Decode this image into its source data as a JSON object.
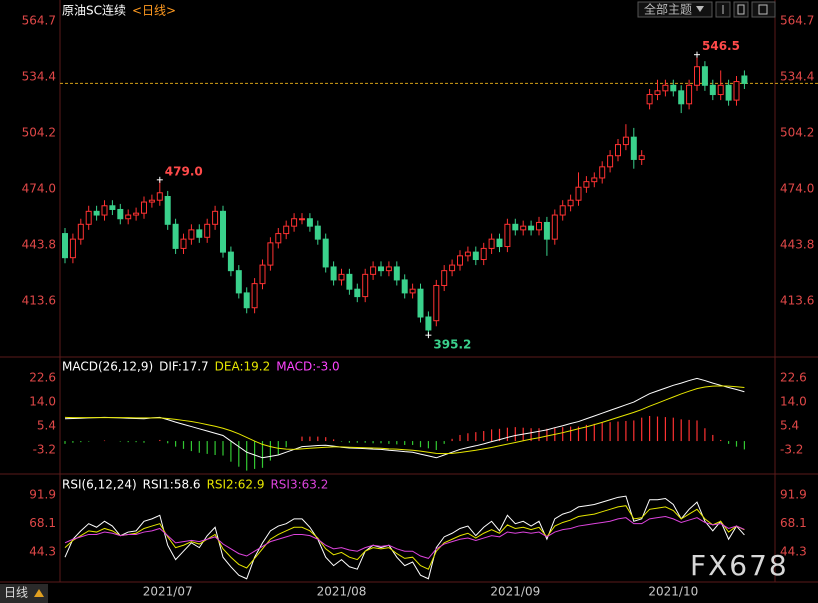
{
  "ui": {
    "theme_menu": "全部主题",
    "period_button": "日线",
    "watermark": "FX678"
  },
  "chart_data": [
    {
      "type": "candlestick",
      "title": "原油SC连续",
      "subtitle": "<日线>",
      "categories": [
        null,
        null,
        null,
        null,
        null,
        null,
        null,
        null,
        null,
        null,
        null,
        null,
        null,
        "2021/07",
        null,
        null,
        null,
        null,
        null,
        null,
        null,
        null,
        null,
        null,
        null,
        null,
        null,
        null,
        null,
        null,
        null,
        null,
        null,
        null,
        null,
        "2021/08",
        null,
        null,
        null,
        null,
        null,
        null,
        null,
        null,
        null,
        null,
        null,
        null,
        null,
        null,
        null,
        null,
        null,
        null,
        null,
        null,
        null,
        "2021/09",
        null,
        null,
        null,
        null,
        null,
        null,
        null,
        null,
        null,
        null,
        null,
        null,
        null,
        null,
        null,
        null,
        null,
        null,
        null,
        "2021/10",
        null,
        null,
        null,
        null,
        null,
        null,
        null,
        null,
        null
      ],
      "open": [
        450,
        437,
        447,
        455,
        462,
        460,
        465,
        463,
        458,
        460,
        461,
        467,
        468,
        470,
        455,
        442,
        447,
        452,
        448,
        455,
        462,
        440,
        430,
        418,
        410,
        423,
        433,
        445,
        450,
        454,
        458,
        458,
        454,
        447,
        432,
        425,
        428,
        420,
        416,
        428,
        432,
        430,
        432,
        425,
        418,
        420,
        405,
        403,
        422,
        430,
        433,
        438,
        440,
        436,
        442,
        447,
        443,
        455,
        452,
        454,
        452,
        456,
        447,
        460,
        465,
        468,
        475,
        478,
        480,
        486,
        492,
        498,
        502,
        490,
        520,
        525,
        527,
        530,
        527,
        520,
        530,
        540,
        530,
        525,
        530,
        522,
        535
      ],
      "high": [
        453,
        450,
        458,
        465,
        465,
        468,
        468,
        466,
        463,
        464,
        470,
        471,
        479.0,
        473,
        458,
        450,
        455,
        455,
        458,
        465,
        465,
        443,
        433,
        421,
        426,
        436,
        448,
        453,
        457,
        461,
        461,
        461,
        457,
        450,
        435,
        431,
        431,
        423,
        431,
        435,
        435,
        435,
        435,
        428,
        423,
        423,
        408,
        425,
        433,
        436,
        441,
        443,
        443,
        445,
        450,
        450,
        458,
        458,
        457,
        457,
        459,
        459,
        463,
        468,
        471,
        483,
        481,
        483,
        489,
        495,
        501,
        509,
        507,
        495,
        528,
        533,
        533,
        533,
        530,
        533,
        546.5,
        543,
        533,
        538,
        533,
        535,
        538
      ],
      "low": [
        434,
        434,
        444,
        452,
        457,
        457,
        460,
        455,
        455,
        457,
        458,
        464,
        465,
        452,
        439,
        439,
        444,
        445,
        445,
        452,
        437,
        427,
        415,
        407,
        407,
        420,
        430,
        442,
        447,
        451,
        455,
        451,
        444,
        429,
        422,
        422,
        417,
        413,
        413,
        425,
        427,
        427,
        422,
        415,
        415,
        402,
        395.2,
        400,
        419,
        427,
        430,
        435,
        433,
        433,
        439,
        440,
        440,
        449,
        449,
        449,
        449,
        438,
        444,
        457,
        462,
        465,
        472,
        475,
        477,
        483,
        489,
        495,
        485,
        487,
        517,
        522,
        524,
        524,
        515,
        517,
        527,
        527,
        522,
        522,
        519,
        519,
        528
      ],
      "close": [
        437,
        447,
        455,
        462,
        460,
        465,
        463,
        458,
        460,
        461,
        467,
        468,
        472,
        455,
        442,
        447,
        452,
        448,
        455,
        462,
        440,
        430,
        418,
        410,
        423,
        433,
        445,
        450,
        454,
        458,
        458,
        454,
        447,
        432,
        425,
        428,
        420,
        416,
        428,
        432,
        430,
        432,
        425,
        418,
        420,
        405,
        398,
        422,
        430,
        433,
        438,
        440,
        436,
        442,
        447,
        443,
        455,
        452,
        454,
        452,
        456,
        447,
        460,
        465,
        468,
        475,
        478,
        480,
        486,
        492,
        498,
        502,
        490,
        492,
        525,
        527,
        530,
        527,
        520,
        530,
        540,
        530,
        525,
        530,
        522,
        532,
        531
      ],
      "up_color": "#ff3232",
      "down_color": "#3ad18c",
      "last_price_color": "#d4a017",
      "annotations": [
        {
          "label": "479.0",
          "value": 479.0
        },
        {
          "label": "546.5",
          "value": 546.5
        },
        {
          "label": "395.2",
          "value": 395.2
        }
      ],
      "ylim": [
        384.5,
        573.3
      ],
      "yticks": [
        413.6,
        443.8,
        {
          "value": 474,
          "label": "474.0"
        },
        504.2,
        534.4,
        564.7
      ]
    },
    {
      "type": "macd",
      "title": "MACD(26,12,9)",
      "series": [
        {
          "name": "DIF:17.7",
          "color": "#ffffff",
          "style": "line",
          "values": [
            8.0,
            8.1,
            8.2,
            8.3,
            8.4,
            8.5,
            8.4,
            8.3,
            8.2,
            8.1,
            8.0,
            8.3,
            8.5,
            7.7,
            6.8,
            6.0,
            5.2,
            4.4,
            3.6,
            2.8,
            2.0,
            0,
            -2,
            -4,
            -5,
            -6,
            -5.5,
            -5,
            -4,
            -3,
            -2,
            -1.8,
            -1.6,
            -1.5,
            -1.8,
            -2.2,
            -2.5,
            -2.6,
            -2.7,
            -2.9,
            -3.0,
            -3.3,
            -3.5,
            -3.8,
            -4.0,
            -4.7,
            -5.3,
            -6.0,
            -5,
            -4,
            -3,
            -2.3,
            -1.7,
            -1.0,
            -0.2,
            0.5,
            1.3,
            2.0,
            2.5,
            3.0,
            3.5,
            4.0,
            4.8,
            5.5,
            6.3,
            7.0,
            8.0,
            9.0,
            10.0,
            11.0,
            12.0,
            13.0,
            14.0,
            15.5,
            17.0,
            18.0,
            19.0,
            20.0,
            20.8,
            21.7,
            22.5,
            21.7,
            20.8,
            20.0,
            19.2,
            18.5,
            17.7
          ]
        },
        {
          "name": "DEA:19.2",
          "color": "#e6e600",
          "style": "line",
          "values": [
            8.5,
            8.4,
            8.4,
            8.4,
            8.4,
            8.4,
            8.4,
            8.4,
            8.4,
            8.3,
            8.3,
            8.3,
            8.3,
            8.1,
            7.8,
            7.4,
            7.0,
            6.5,
            5.9,
            5.3,
            4.6,
            3.7,
            2.6,
            1.3,
            0,
            -1.2,
            -2.0,
            -2.6,
            -2.9,
            -3.0,
            -2.8,
            -2.6,
            -2.4,
            -2.2,
            -2.1,
            -2.1,
            -2.2,
            -2.3,
            -2.4,
            -2.5,
            -2.6,
            -2.8,
            -2.9,
            -3.1,
            -3.3,
            -3.6,
            -4.0,
            -4.4,
            -4.5,
            -4.4,
            -4.1,
            -3.7,
            -3.3,
            -2.8,
            -2.3,
            -1.7,
            -1.1,
            -0.5,
            0.1,
            0.7,
            1.2,
            1.8,
            2.4,
            3.0,
            3.7,
            4.4,
            5.1,
            5.9,
            6.7,
            7.6,
            8.5,
            9.4,
            10.3,
            11.3,
            12.5,
            13.6,
            14.7,
            15.8,
            16.9,
            17.9,
            18.8,
            19.4,
            19.7,
            19.8,
            19.7,
            19.5,
            19.2
          ]
        },
        {
          "name": "MACD:-3.0",
          "color": "#ff44ff",
          "style": "bar",
          "up_color": "#ff3232",
          "down_color": "#32c832",
          "values": [
            -1.0,
            -0.6,
            -0.4,
            -0.2,
            0,
            0.2,
            0,
            -0.2,
            -0.4,
            -0.4,
            -0.6,
            0,
            0.4,
            -0.8,
            -2.0,
            -2.8,
            -3.6,
            -4.2,
            -4.6,
            -5.0,
            -5.2,
            -7.4,
            -9.2,
            -10.6,
            -10.0,
            -9.6,
            -7.0,
            -4.8,
            -2.2,
            0,
            1.6,
            1.6,
            1.6,
            1.4,
            0.6,
            -0.2,
            -0.6,
            -0.6,
            -0.6,
            -0.8,
            -0.8,
            -1.0,
            -1.2,
            -1.4,
            -1.4,
            -2.2,
            -2.6,
            -3.2,
            -1.0,
            0.8,
            2.2,
            2.8,
            3.2,
            3.6,
            4.2,
            4.4,
            4.8,
            5.0,
            4.8,
            4.6,
            4.6,
            4.4,
            4.8,
            5.0,
            5.2,
            5.2,
            5.8,
            6.2,
            6.6,
            6.8,
            7.0,
            7.2,
            7.4,
            8.4,
            9.0,
            8.8,
            8.6,
            8.4,
            7.8,
            7.6,
            7.4,
            4.6,
            2.2,
            0.4,
            -1.0,
            -2.0,
            -3.0
          ]
        }
      ],
      "ylim": [
        -11.1,
        29.8
      ],
      "yticks": [
        22.6,
        {
          "value": 14,
          "label": "14.0"
        },
        5.4,
        -3.2
      ]
    },
    {
      "type": "line",
      "title": "RSI(6,12,24)",
      "series": [
        {
          "name": "RSI1:58.6",
          "color": "#ffffff",
          "values": [
            40,
            55,
            62,
            68,
            65,
            70,
            66,
            58,
            61,
            62,
            70,
            72,
            75,
            50,
            38,
            45,
            52,
            48,
            58,
            65,
            40,
            32,
            25,
            22,
            40,
            52,
            62,
            66,
            68,
            72,
            72,
            65,
            55,
            40,
            33,
            38,
            32,
            30,
            45,
            50,
            48,
            50,
            40,
            33,
            36,
            25,
            22,
            48,
            57,
            60,
            64,
            66,
            58,
            65,
            70,
            62,
            75,
            68,
            70,
            66,
            70,
            55,
            72,
            76,
            78,
            82,
            83,
            84,
            86,
            88,
            90,
            91,
            70,
            72,
            88,
            88,
            89,
            84,
            72,
            80,
            86,
            70,
            62,
            70,
            55,
            66,
            58.6
          ]
        },
        {
          "name": "RSI2:62.9",
          "color": "#e6e600",
          "values": [
            48,
            54,
            58,
            62,
            61,
            64,
            62,
            58,
            59,
            60,
            64,
            66,
            68,
            57,
            48,
            50,
            53,
            51,
            55,
            59,
            47,
            40,
            34,
            31,
            39,
            47,
            55,
            59,
            62,
            65,
            65,
            62,
            56,
            47,
            42,
            44,
            40,
            38,
            45,
            48,
            47,
            48,
            43,
            39,
            40,
            33,
            30,
            45,
            52,
            55,
            58,
            60,
            56,
            60,
            63,
            60,
            67,
            64,
            65,
            63,
            65,
            57,
            66,
            69,
            71,
            74,
            75,
            76,
            78,
            80,
            82,
            83,
            72,
            73,
            80,
            81,
            82,
            79,
            72,
            76,
            80,
            72,
            67,
            70,
            61,
            66,
            62.9
          ]
        },
        {
          "name": "RSI3:63.2",
          "color": "#dd44dd",
          "values": [
            52,
            55,
            57,
            59,
            59,
            61,
            60,
            58,
            59,
            59,
            61,
            62,
            64,
            58,
            52,
            53,
            54,
            53,
            55,
            57,
            51,
            47,
            43,
            41,
            45,
            49,
            53,
            55,
            57,
            59,
            59,
            58,
            55,
            50,
            47,
            48,
            46,
            45,
            48,
            50,
            49,
            50,
            47,
            45,
            45,
            41,
            39,
            47,
            51,
            53,
            55,
            56,
            54,
            56,
            58,
            57,
            61,
            60,
            61,
            60,
            61,
            57,
            61,
            63,
            64,
            66,
            67,
            68,
            69,
            70,
            72,
            73,
            68,
            68,
            72,
            73,
            74,
            72,
            69,
            71,
            73,
            69,
            67,
            68,
            64,
            66,
            63.2
          ]
        }
      ],
      "ylim": [
        19.3,
        107.8
      ],
      "yticks": [
        91.9,
        68.1,
        44.3
      ]
    }
  ]
}
